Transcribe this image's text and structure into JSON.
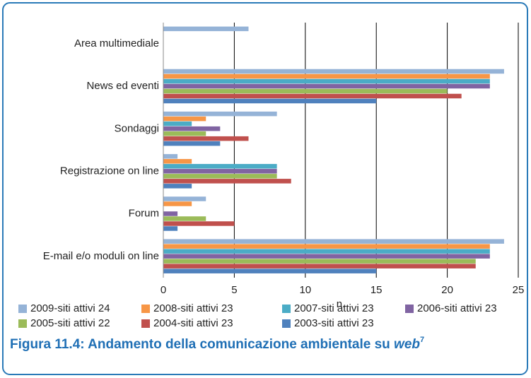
{
  "chart_data": {
    "type": "barh",
    "categories": [
      "Area multimediale",
      "News ed eventi",
      "Sondaggi",
      "Registrazione on line",
      "Forum",
      "E-mail e/o moduli on line"
    ],
    "series": [
      {
        "name": "2009-siti attivi 24",
        "color": "#95b3d7",
        "values": [
          6,
          24,
          8,
          1,
          3,
          24
        ]
      },
      {
        "name": "2008-siti attivi 23",
        "color": "#f79646",
        "values": [
          0,
          23,
          3,
          2,
          2,
          23
        ]
      },
      {
        "name": "2007-siti attivi 23",
        "color": "#4bacc6",
        "values": [
          0,
          23,
          2,
          8,
          0,
          23
        ]
      },
      {
        "name": "2006-siti attivi 23",
        "color": "#8064a2",
        "values": [
          0,
          23,
          4,
          8,
          1,
          23
        ]
      },
      {
        "name": "2005-siti attivi 22",
        "color": "#9bbb59",
        "values": [
          0,
          20,
          3,
          8,
          3,
          22
        ]
      },
      {
        "name": "2004-siti attivi 23",
        "color": "#c0504d",
        "values": [
          0,
          21,
          6,
          9,
          5,
          22
        ]
      },
      {
        "name": "2003-siti attivi 23",
        "color": "#4f81bd",
        "values": [
          0,
          15,
          4,
          2,
          1,
          15
        ]
      }
    ],
    "xlabel": "n.",
    "xlim": [
      0,
      25
    ],
    "xticks": [
      0,
      5,
      10,
      15,
      20,
      25
    ],
    "grid": true,
    "caption": {
      "text": "Figura 11.4: Andamento della comunicazione ambientale su",
      "emphasis": "web",
      "note": "7"
    }
  }
}
